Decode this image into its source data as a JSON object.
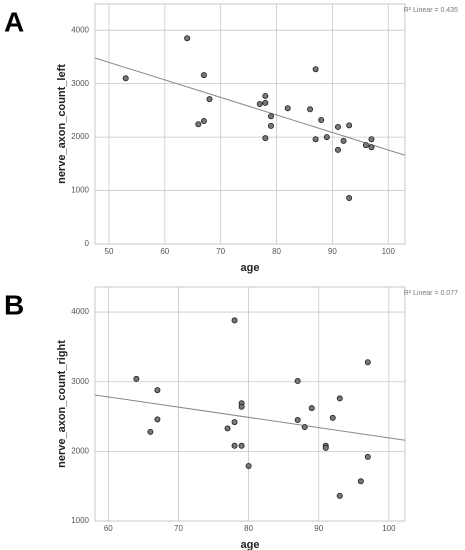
{
  "chart_data": [
    {
      "type": "scatter",
      "panel": "A",
      "x_label": "age",
      "y_label": "nerve_axon_count_left",
      "annotation": "R² Linear = 0.435",
      "xlim": [
        47.5,
        103
      ],
      "ylim": [
        0,
        4490
      ],
      "xticks": [
        50,
        60,
        70,
        80,
        90,
        100
      ],
      "yticks": [
        0,
        1000,
        2000,
        3000,
        4000
      ],
      "grid": true,
      "color": "#777777",
      "x": [
        53,
        64,
        67,
        66,
        67,
        68,
        77,
        78,
        78,
        79,
        79,
        78,
        82,
        86,
        87,
        87,
        88,
        89,
        91,
        91,
        92,
        93,
        93,
        96,
        97,
        97
      ],
      "values": [
        3100,
        3850,
        3160,
        2240,
        2300,
        2710,
        2620,
        2770,
        2640,
        2390,
        2210,
        1980,
        2540,
        2520,
        3270,
        1960,
        2320,
        2000,
        2190,
        1760,
        1930,
        2220,
        860,
        1850,
        1810,
        1960
      ],
      "fit_line": {
        "x": [
          47.5,
          103
        ],
        "values": [
          3480,
          1660
        ]
      }
    },
    {
      "type": "scatter",
      "panel": "B",
      "x_label": "age",
      "y_label": "nerve_axon_count_right",
      "annotation": "R² Linear = 0.077",
      "xlim": [
        58.1,
        102.3
      ],
      "ylim": [
        1000,
        4360
      ],
      "xticks": [
        60,
        70,
        80,
        90,
        100
      ],
      "yticks": [
        1000,
        2000,
        3000,
        4000
      ],
      "grid": true,
      "color": "#777777",
      "x": [
        64,
        67,
        67,
        66,
        78,
        77,
        78,
        79,
        79,
        78,
        79,
        80,
        87,
        87,
        88,
        89,
        91,
        91,
        92,
        93,
        93,
        96,
        97,
        97
      ],
      "values": [
        3040,
        2880,
        2460,
        2280,
        3880,
        2330,
        2420,
        2690,
        2640,
        2080,
        2080,
        1790,
        3010,
        2450,
        2350,
        2620,
        2080,
        2050,
        2480,
        2760,
        1360,
        1570,
        3280,
        1920
      ],
      "fit_line": {
        "x": [
          58.1,
          102.3
        ],
        "values": [
          2810,
          2160
        ]
      }
    }
  ]
}
